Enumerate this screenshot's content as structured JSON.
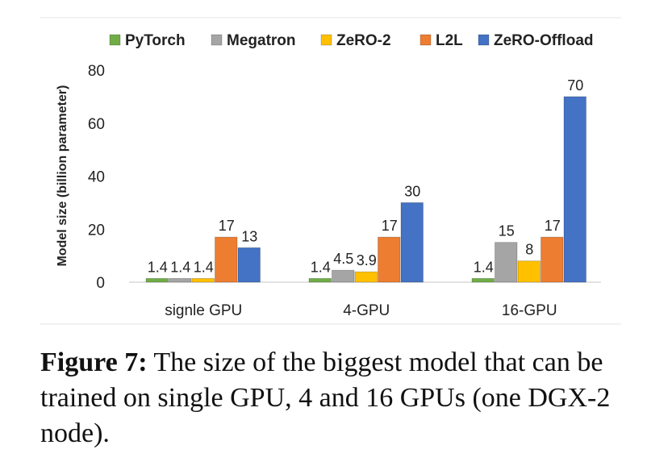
{
  "chart_data": {
    "type": "bar",
    "categories": [
      "signle GPU",
      "4-GPU",
      "16-GPU"
    ],
    "series": [
      {
        "name": "PyTorch",
        "color": "#70ad47",
        "values": [
          1.4,
          1.4,
          1.4
        ],
        "labels": [
          "1.4",
          "1.4",
          "1.4"
        ]
      },
      {
        "name": "Megatron",
        "color": "#a5a5a5",
        "values": [
          1.4,
          4.5,
          15
        ],
        "labels": [
          "1.4",
          "4.5",
          "15"
        ]
      },
      {
        "name": "ZeRO-2",
        "color": "#ffc000",
        "values": [
          1.4,
          3.9,
          8
        ],
        "labels": [
          "1.4",
          "3.9",
          "8"
        ]
      },
      {
        "name": "L2L",
        "color": "#ed7d31",
        "values": [
          17,
          17,
          17
        ],
        "labels": [
          "17",
          "17",
          "17"
        ]
      },
      {
        "name": "ZeRO-Offload",
        "color": "#4472c4",
        "values": [
          13,
          30,
          70
        ],
        "labels": [
          "13",
          "30",
          "70"
        ]
      }
    ],
    "ylabel": "Model size (billion parameter)",
    "xlabel": "",
    "ylim": [
      0,
      80
    ],
    "yticks": [
      0,
      20,
      40,
      60,
      80
    ],
    "grid": false,
    "legend_position": "top"
  },
  "caption": {
    "label": "Figure 7:",
    "text": " The size of the biggest model that can be trained on single GPU, 4 and 16 GPUs (one DGX-2 node)."
  }
}
